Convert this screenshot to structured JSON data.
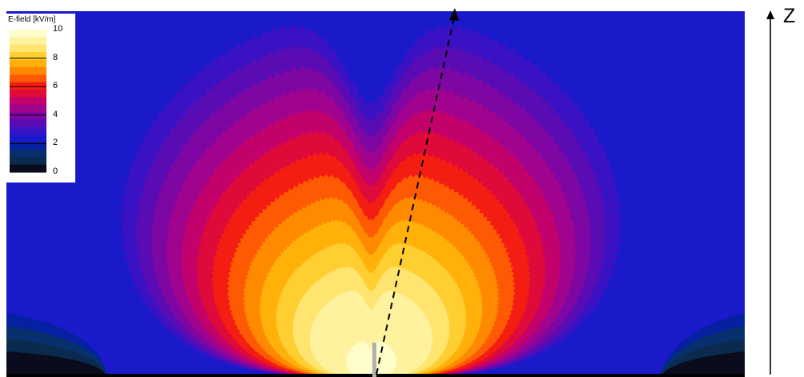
{
  "chart_data": {
    "type": "heatmap",
    "legend": {
      "title": "E-field [kV/m]",
      "ticks": [
        10,
        8,
        6,
        4,
        2,
        0
      ],
      "color_scale": [
        {
          "value": 0.0,
          "color": "#000000"
        },
        {
          "value": 0.5,
          "color": "#0b0b1e"
        },
        {
          "value": 1.0,
          "color": "#0a2a4f"
        },
        {
          "value": 1.5,
          "color": "#06306e"
        },
        {
          "value": 2.0,
          "color": "#0520a0"
        },
        {
          "value": 2.5,
          "color": "#1a1acb"
        },
        {
          "value": 3.0,
          "color": "#3a12c4"
        },
        {
          "value": 3.5,
          "color": "#5a0cb4"
        },
        {
          "value": 4.0,
          "color": "#7e06a2"
        },
        {
          "value": 4.5,
          "color": "#a0048e"
        },
        {
          "value": 5.0,
          "color": "#c2026a"
        },
        {
          "value": 5.5,
          "color": "#de0a3a"
        },
        {
          "value": 6.0,
          "color": "#f41d12"
        },
        {
          "value": 6.5,
          "color": "#fe5a04"
        },
        {
          "value": 7.0,
          "color": "#ff8a00"
        },
        {
          "value": 7.5,
          "color": "#ffb10a"
        },
        {
          "value": 8.0,
          "color": "#ffce30"
        },
        {
          "value": 8.5,
          "color": "#ffe570"
        },
        {
          "value": 9.0,
          "color": "#fff29e"
        },
        {
          "value": 10.0,
          "color": "#fffdca"
        }
      ]
    },
    "vertical_axis_label": "Z",
    "field_levels": [
      3.0,
      3.5,
      4.0,
      4.5,
      5.0,
      5.5,
      6.0,
      6.5,
      7.0,
      7.5,
      8.0,
      8.5,
      9.0,
      10.0
    ],
    "field_model": {
      "source": {
        "x_frac": 0.494,
        "y_frac": 1.0
      },
      "radial_width": 760,
      "vertical_scale": 1.18,
      "null_cusp_depth": 0.25,
      "null_cusp_width": 0.08,
      "ground_fade_height": 80
    },
    "dashed_arrow": {
      "from": [
        0.497,
        1.0
      ],
      "to": [
        0.597,
        0.0
      ]
    },
    "antenna": {
      "x_frac": 0.496,
      "color": "#b0b0b0"
    }
  }
}
